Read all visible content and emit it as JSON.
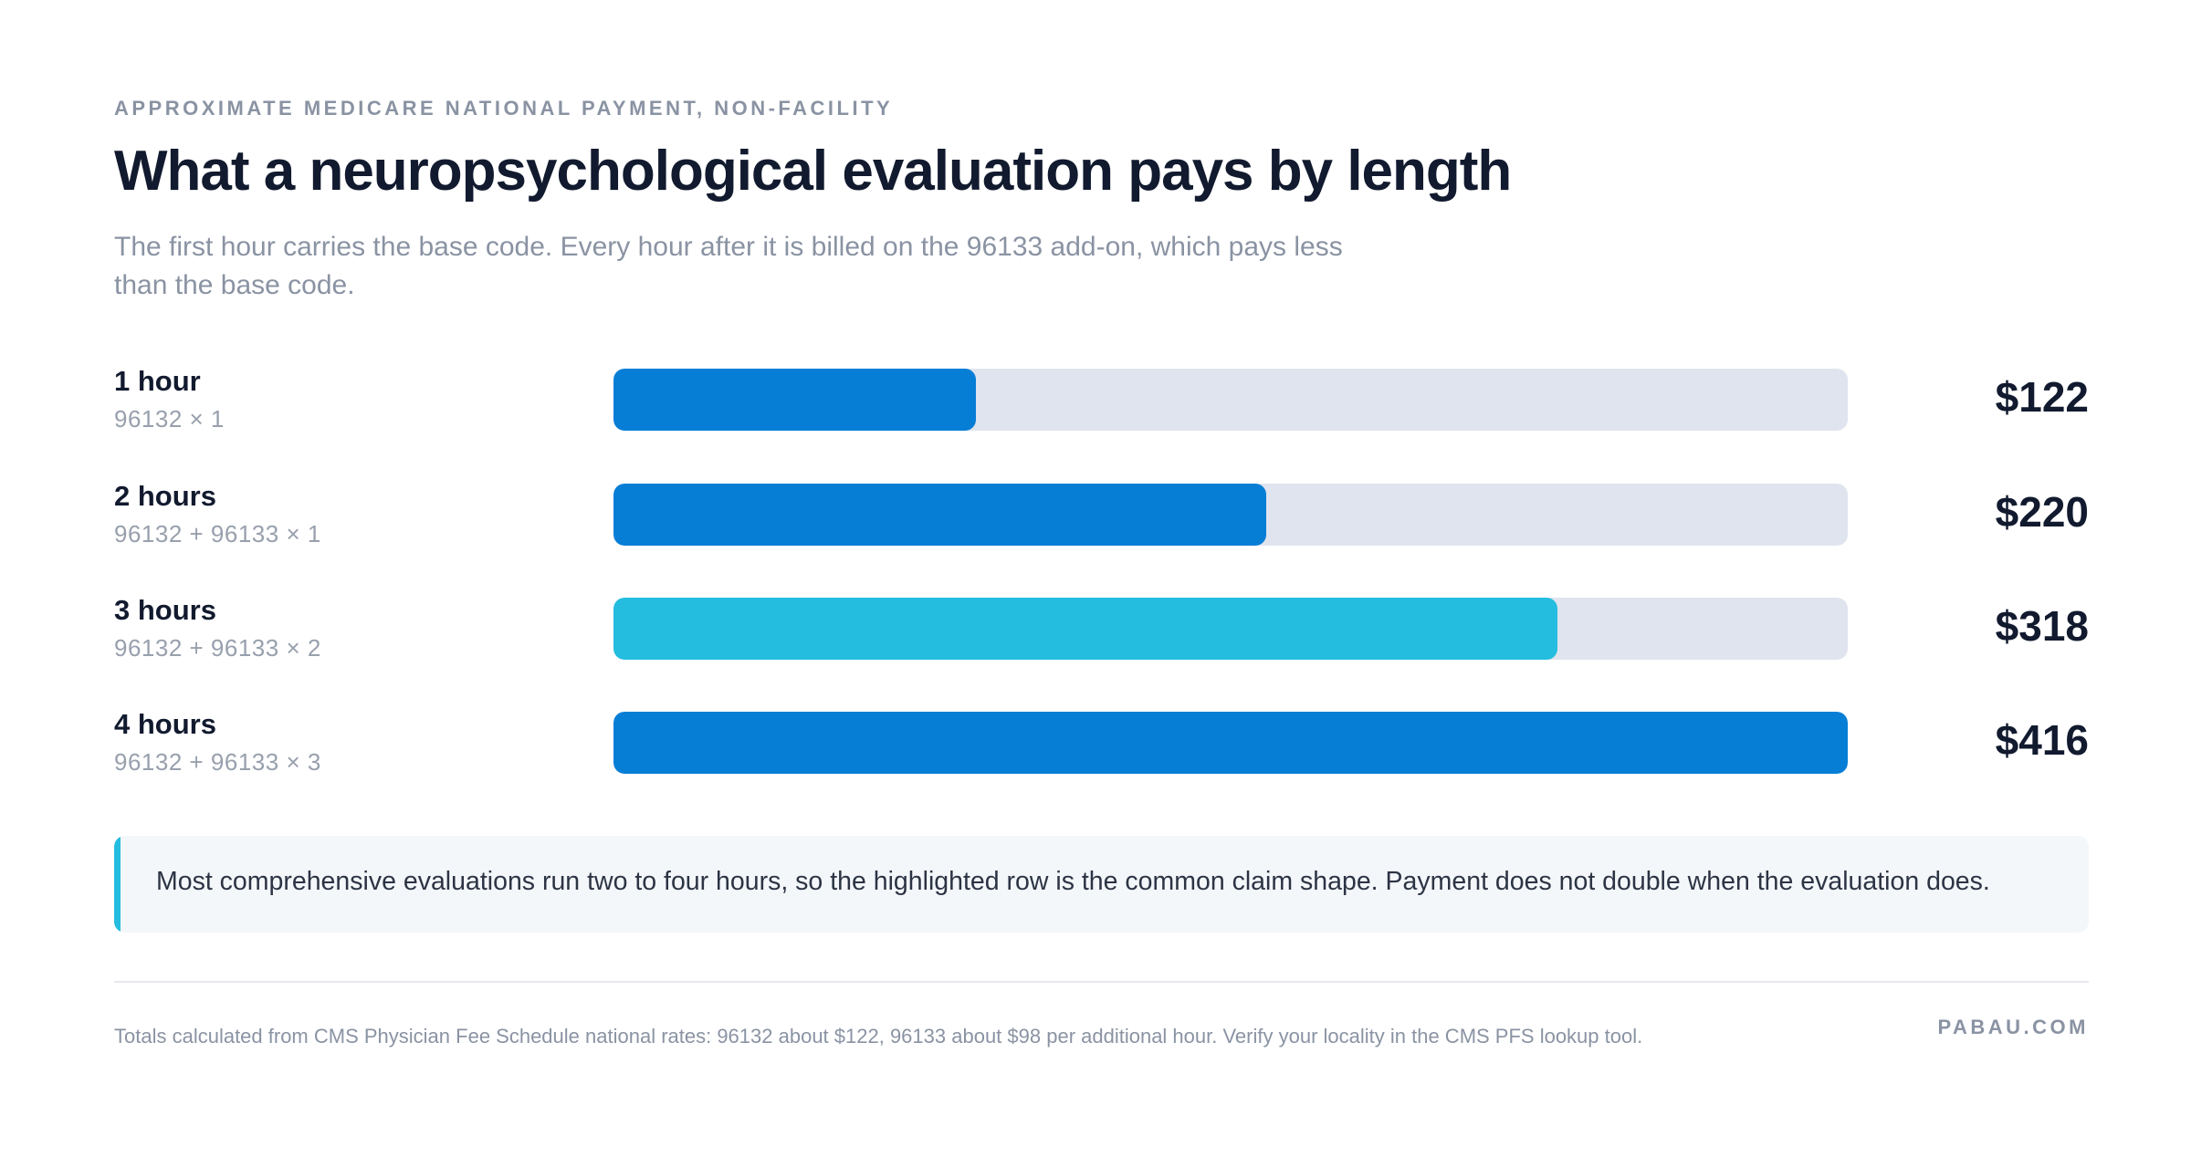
{
  "eyebrow": "APPROXIMATE MEDICARE NATIONAL PAYMENT, NON-FACILITY",
  "title": "What a neuropsychological evaluation pays by length",
  "subtitle": "The first hour carries the base code. Every hour after it is billed on the 96133 add-on, which pays less than the base code.",
  "colors": {
    "bar_primary": "#077ed6",
    "bar_highlight": "#24bddf",
    "track": "#e0e4ee",
    "callout_accent": "#24bddf"
  },
  "chart_data": {
    "type": "bar",
    "orientation": "horizontal",
    "categories": [
      "1 hour",
      "2 hours",
      "3 hours",
      "4 hours"
    ],
    "sublabels": [
      "96132 × 1",
      "96132 + 96133 × 1",
      "96132 + 96133 × 2",
      "96132 + 96133 × 3"
    ],
    "values": [
      122,
      220,
      318,
      416
    ],
    "value_labels": [
      "$122",
      "$220",
      "$318",
      "$416"
    ],
    "highlighted": [
      false,
      false,
      true,
      false
    ],
    "xlim": [
      0,
      416
    ],
    "grid": false,
    "legend": "none"
  },
  "callout": {
    "text": "Most comprehensive evaluations run two to four hours, so the highlighted row is the common claim shape. Payment does not double when the evaluation does."
  },
  "footer": {
    "note": "Totals calculated from CMS Physician Fee Schedule national rates: 96132 about $122, 96133 about $98 per additional hour. Verify your locality in the CMS PFS lookup tool.",
    "brand": "PABAU.COM"
  }
}
